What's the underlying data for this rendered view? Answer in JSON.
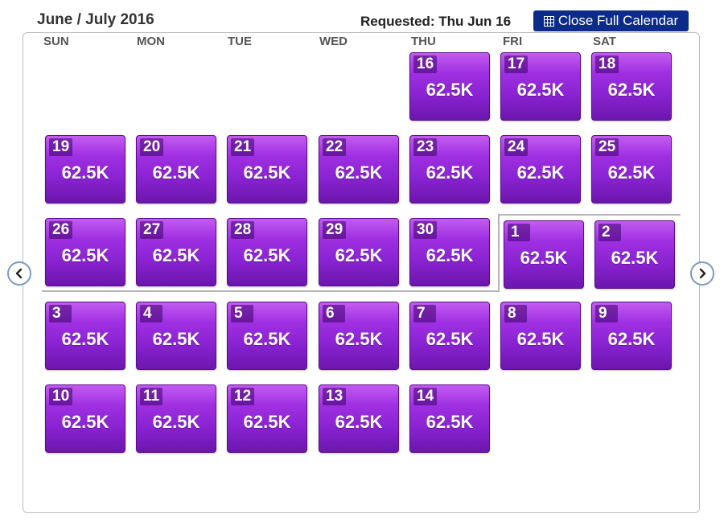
{
  "header": {
    "title": "June / July 2016",
    "requested": "Requested: Thu Jun 16",
    "close_label": "Close Full Calendar"
  },
  "weekdays": [
    "SUN",
    "MON",
    "TUE",
    "WED",
    "THU",
    "FRI",
    "SAT"
  ],
  "days": [
    {
      "num": "16",
      "price": "62.5K"
    },
    {
      "num": "17",
      "price": "62.5K"
    },
    {
      "num": "18",
      "price": "62.5K"
    },
    {
      "num": "19",
      "price": "62.5K"
    },
    {
      "num": "20",
      "price": "62.5K"
    },
    {
      "num": "21",
      "price": "62.5K"
    },
    {
      "num": "22",
      "price": "62.5K"
    },
    {
      "num": "23",
      "price": "62.5K"
    },
    {
      "num": "24",
      "price": "62.5K"
    },
    {
      "num": "25",
      "price": "62.5K"
    },
    {
      "num": "26",
      "price": "62.5K"
    },
    {
      "num": "27",
      "price": "62.5K"
    },
    {
      "num": "28",
      "price": "62.5K"
    },
    {
      "num": "29",
      "price": "62.5K"
    },
    {
      "num": "30",
      "price": "62.5K"
    },
    {
      "num": "1",
      "price": "62.5K"
    },
    {
      "num": "2",
      "price": "62.5K"
    },
    {
      "num": "3",
      "price": "62.5K"
    },
    {
      "num": "4",
      "price": "62.5K"
    },
    {
      "num": "5",
      "price": "62.5K"
    },
    {
      "num": "6",
      "price": "62.5K"
    },
    {
      "num": "7",
      "price": "62.5K"
    },
    {
      "num": "8",
      "price": "62.5K"
    },
    {
      "num": "9",
      "price": "62.5K"
    },
    {
      "num": "10",
      "price": "62.5K"
    },
    {
      "num": "11",
      "price": "62.5K"
    },
    {
      "num": "12",
      "price": "62.5K"
    },
    {
      "num": "13",
      "price": "62.5K"
    },
    {
      "num": "14",
      "price": "62.5K"
    }
  ],
  "icons": {
    "calendar": "calendar-icon",
    "prev": "chevron-left-icon",
    "next": "chevron-right-icon"
  },
  "colors": {
    "accent": "#0b2a8a",
    "day_tile": "#9f30e2",
    "nav_border": "#7a99c7"
  }
}
